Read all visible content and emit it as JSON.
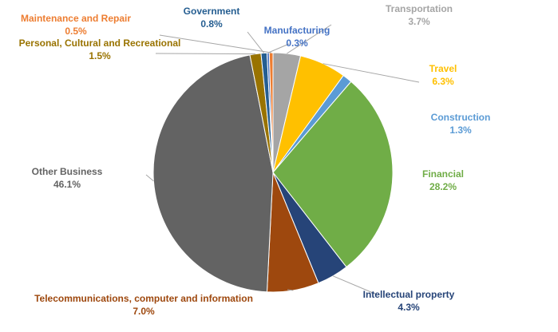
{
  "chart_data": {
    "type": "pie",
    "title": "",
    "legend": "none",
    "slices": [
      {
        "label": "Transportation",
        "value": 3.7,
        "display": "3.7%",
        "color": "#A5A5A5"
      },
      {
        "label": "Travel",
        "value": 6.3,
        "display": "6.3%",
        "color": "#FFC000"
      },
      {
        "label": "Construction",
        "value": 1.3,
        "display": "1.3%",
        "color": "#5B9BD5"
      },
      {
        "label": "Financial",
        "value": 28.2,
        "display": "28.2%",
        "color": "#70AD47"
      },
      {
        "label": "Intellectual property",
        "value": 4.3,
        "display": "4.3%",
        "color": "#264478"
      },
      {
        "label": "Telecommunications, computer and information",
        "value": 7.0,
        "display": "7.0%",
        "color": "#9E480E"
      },
      {
        "label": "Other Business",
        "value": 46.1,
        "display": "46.1%",
        "color": "#636363"
      },
      {
        "label": "Personal, Cultural and Recreational",
        "value": 1.5,
        "display": "1.5%",
        "color": "#997300"
      },
      {
        "label": "Government",
        "value": 0.8,
        "display": "0.8%",
        "color": "#255E91"
      },
      {
        "label": "Manufacturing",
        "value": 0.3,
        "display": "0.3%",
        "color": "#4472C4"
      },
      {
        "label": "Maintenance and Repair",
        "value": 0.5,
        "display": "0.5%",
        "color": "#ED7D31"
      }
    ]
  }
}
